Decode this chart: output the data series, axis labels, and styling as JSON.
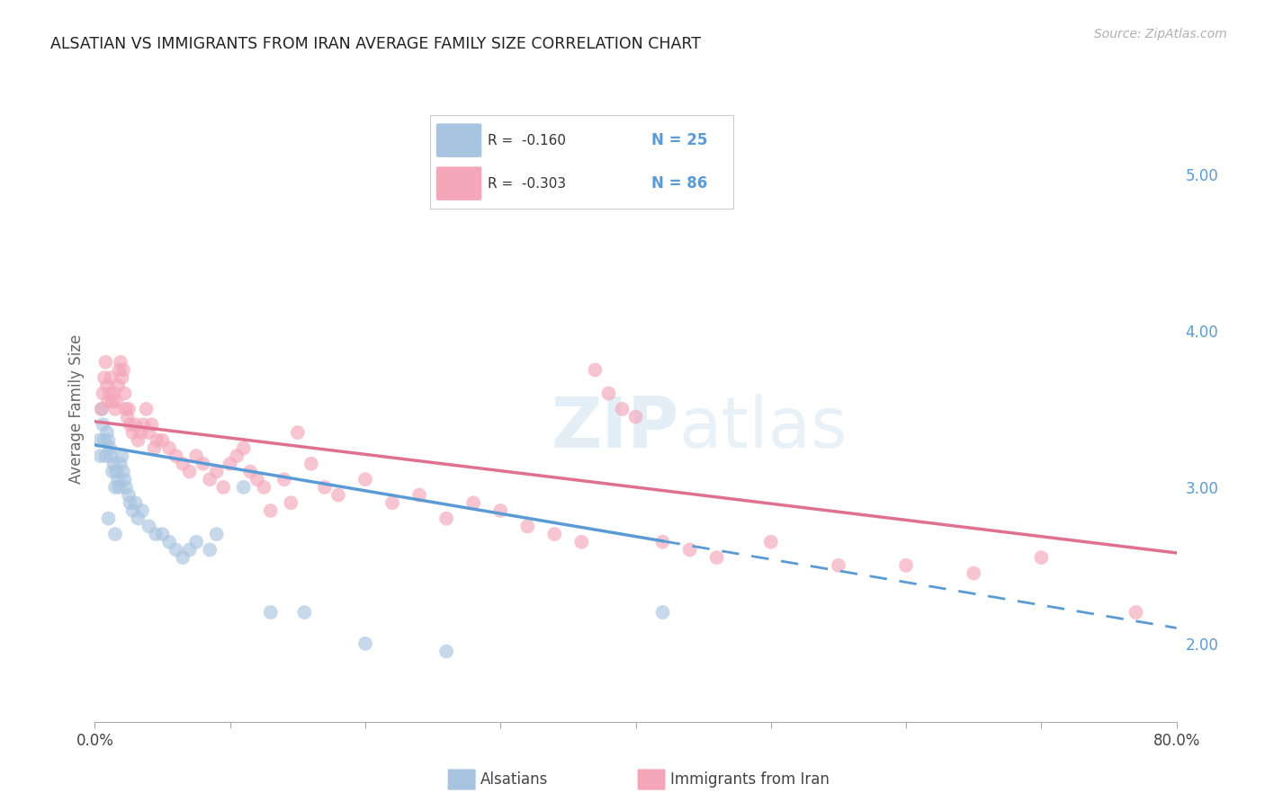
{
  "title": "ALSATIAN VS IMMIGRANTS FROM IRAN AVERAGE FAMILY SIZE CORRELATION CHART",
  "source": "Source: ZipAtlas.com",
  "ylabel": "Average Family Size",
  "right_yticks": [
    2.0,
    3.0,
    4.0,
    5.0
  ],
  "watermark": "ZIPatlas",
  "alsatians_x": [
    0.3,
    0.5,
    0.6,
    0.8,
    0.9,
    1.0,
    1.1,
    1.2,
    1.3,
    1.4,
    1.5,
    1.6,
    1.7,
    1.8,
    1.9,
    2.0,
    2.1,
    2.2,
    2.3,
    2.5,
    2.6,
    2.8,
    3.0,
    3.2,
    3.5,
    4.0,
    4.5,
    5.0,
    5.5,
    6.0,
    6.5,
    7.0,
    7.5,
    8.5,
    9.0,
    11.0,
    13.0,
    15.5,
    20.0,
    26.0,
    42.0,
    0.4,
    0.7,
    1.0,
    1.5
  ],
  "alsatians_y": [
    3.3,
    3.5,
    3.4,
    3.2,
    3.35,
    3.3,
    3.25,
    3.2,
    3.1,
    3.15,
    3.0,
    3.1,
    3.05,
    3.0,
    3.15,
    3.2,
    3.1,
    3.05,
    3.0,
    2.95,
    2.9,
    2.85,
    2.9,
    2.8,
    2.85,
    2.75,
    2.7,
    2.7,
    2.65,
    2.6,
    2.55,
    2.6,
    2.65,
    2.6,
    2.7,
    3.0,
    2.2,
    2.2,
    2.0,
    1.95,
    2.2,
    3.2,
    3.3,
    2.8,
    2.7
  ],
  "iranians_x": [
    0.5,
    0.6,
    0.7,
    0.8,
    0.9,
    1.0,
    1.1,
    1.2,
    1.3,
    1.4,
    1.5,
    1.6,
    1.7,
    1.8,
    1.9,
    2.0,
    2.1,
    2.2,
    2.3,
    2.4,
    2.5,
    2.6,
    2.8,
    3.0,
    3.2,
    3.4,
    3.6,
    3.8,
    4.0,
    4.2,
    4.4,
    4.6,
    5.0,
    5.5,
    6.0,
    6.5,
    7.0,
    7.5,
    8.0,
    8.5,
    9.0,
    9.5,
    10.0,
    10.5,
    11.0,
    11.5,
    12.0,
    12.5,
    13.0,
    14.0,
    14.5,
    15.0,
    16.0,
    17.0,
    18.0,
    20.0,
    22.0,
    24.0,
    26.0,
    28.0,
    30.0,
    32.0,
    34.0,
    36.0,
    37.0,
    38.0,
    39.0,
    40.0,
    42.0,
    44.0,
    46.0,
    50.0,
    55.0,
    60.0,
    65.0,
    70.0,
    77.0
  ],
  "iranians_y": [
    3.5,
    3.6,
    3.7,
    3.8,
    3.65,
    3.55,
    3.6,
    3.7,
    3.55,
    3.6,
    3.5,
    3.55,
    3.65,
    3.75,
    3.8,
    3.7,
    3.75,
    3.6,
    3.5,
    3.45,
    3.5,
    3.4,
    3.35,
    3.4,
    3.3,
    3.35,
    3.4,
    3.5,
    3.35,
    3.4,
    3.25,
    3.3,
    3.3,
    3.25,
    3.2,
    3.15,
    3.1,
    3.2,
    3.15,
    3.05,
    3.1,
    3.0,
    3.15,
    3.2,
    3.25,
    3.1,
    3.05,
    3.0,
    2.85,
    3.05,
    2.9,
    3.35,
    3.15,
    3.0,
    2.95,
    3.05,
    2.9,
    2.95,
    2.8,
    2.9,
    2.85,
    2.75,
    2.7,
    2.65,
    3.75,
    3.6,
    3.5,
    3.45,
    2.65,
    2.6,
    2.55,
    2.65,
    2.5,
    2.5,
    2.45,
    2.55,
    2.2
  ],
  "blue_line_x0": 0.0,
  "blue_line_y0": 3.27,
  "blue_line_x1": 80.0,
  "blue_line_y1": 2.1,
  "blue_line_solid_end": 42.0,
  "pink_line_x0": 0.0,
  "pink_line_y0": 3.42,
  "pink_line_x1": 80.0,
  "pink_line_y1": 2.58,
  "dot_color_blue": "#a8c4e0",
  "dot_color_pink": "#f4a7b9",
  "line_color_blue": "#5b9bd5",
  "line_color_pink": "#e07090",
  "background_color": "#ffffff",
  "grid_color": "#cccccc",
  "xlim": [
    0,
    80
  ],
  "ylim": [
    1.5,
    5.5
  ],
  "legend_r_blue": "R =  -0.160",
  "legend_n_blue": "N = 25",
  "legend_r_pink": "R =  -0.303",
  "legend_n_pink": "N = 86",
  "label_alsatians": "Alsatians",
  "label_iranians": "Immigrants from Iran"
}
